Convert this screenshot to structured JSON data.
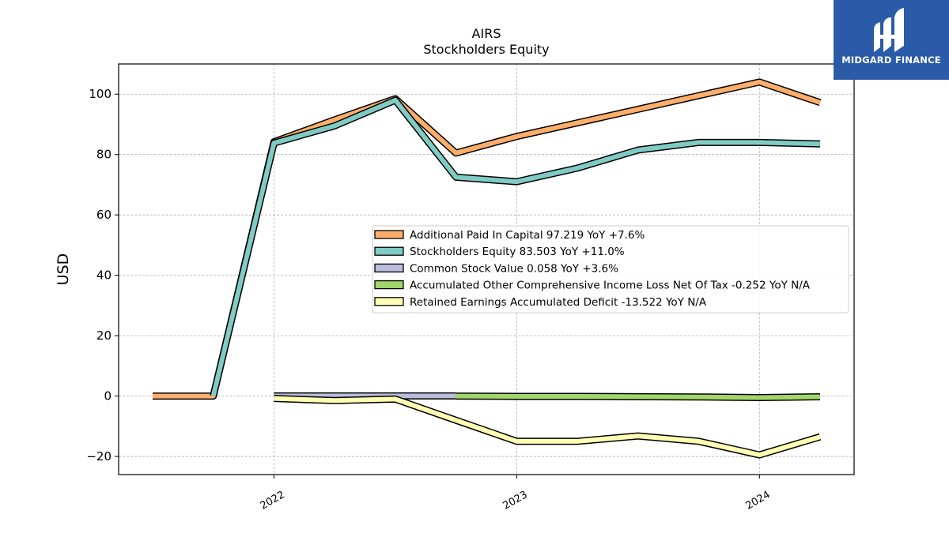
{
  "logo": {
    "text": "MIDGARD FINANCE",
    "bg_color": "#2a5aa8"
  },
  "chart_data": {
    "type": "area",
    "title": "AIRS",
    "subtitle": "Stockholders  Equity",
    "ylabel": "USD",
    "xlabel": "",
    "ylim": [
      -26,
      110
    ],
    "xlim": [
      2021.36,
      2024.39
    ],
    "yticks": [
      -20,
      0,
      20,
      40,
      60,
      80,
      100
    ],
    "ytick_labels": [
      "−20",
      "0",
      "20",
      "40",
      "60",
      "80",
      "100"
    ],
    "xticks": [
      2022,
      2023,
      2024
    ],
    "xtick_labels": [
      "2022",
      "2023",
      "2024"
    ],
    "grid": true,
    "legend_position": "center-right",
    "series": [
      {
        "name": "Additional Paid In Capital",
        "legend": "Additional Paid In Capital  97.219 YoY +7.6%",
        "color": "#fdae6b",
        "x": [
          2021.5,
          2021.75,
          2022.0,
          2022.25,
          2022.5,
          2022.75,
          2023.0,
          2023.25,
          2023.5,
          2023.75,
          2024.0,
          2024.25
        ],
        "values": [
          0,
          0,
          84.2,
          91.5,
          98.5,
          80.5,
          86.0,
          90.5,
          95.0,
          99.5,
          104.0,
          97.2
        ]
      },
      {
        "name": "Stockholders Equity",
        "legend": "Stockholders Equity  83.503 YoY +11.0%",
        "color": "#80cbc4",
        "x": [
          2021.75,
          2022.0,
          2022.25,
          2022.5,
          2022.75,
          2023.0,
          2023.25,
          2023.5,
          2023.75,
          2024.0,
          2024.25
        ],
        "values": [
          0,
          83.8,
          89.5,
          98.0,
          72.5,
          71.0,
          75.5,
          81.5,
          84.0,
          84.0,
          83.5
        ]
      },
      {
        "name": "Common Stock Value",
        "legend": "Common Stock Value  0.058 YoY +3.6%",
        "color": "#bcbddc",
        "x": [
          2022.0,
          2022.25,
          2022.5,
          2022.75
        ],
        "values": [
          0.05,
          0.05,
          0.06,
          0.06
        ]
      },
      {
        "name": "Accumulated Other Comprehensive Income Loss Net Of Tax",
        "legend": "Accumulated Other Comprehensive Income Loss Net Of Tax  -0.252 YoY N/A",
        "color": "#a1d76a",
        "x": [
          2022.75,
          2023.0,
          2023.25,
          2023.5,
          2023.75,
          2024.0,
          2024.25
        ],
        "values": [
          0.0,
          -0.1,
          -0.1,
          -0.2,
          -0.3,
          -0.5,
          -0.25
        ]
      },
      {
        "name": "Retained Earnings Accumulated Deficit",
        "legend": "Retained Earnings Accumulated Deficit  -13.522 YoY N/A",
        "color": "#ffffb3",
        "x": [
          2022.0,
          2022.25,
          2022.5,
          2022.75,
          2023.0,
          2023.25,
          2023.5,
          2023.75,
          2024.0,
          2024.25
        ],
        "values": [
          -0.8,
          -1.5,
          -1.0,
          -8.0,
          -15.0,
          -15.0,
          -13.2,
          -15.0,
          -19.5,
          -13.5
        ]
      }
    ]
  }
}
